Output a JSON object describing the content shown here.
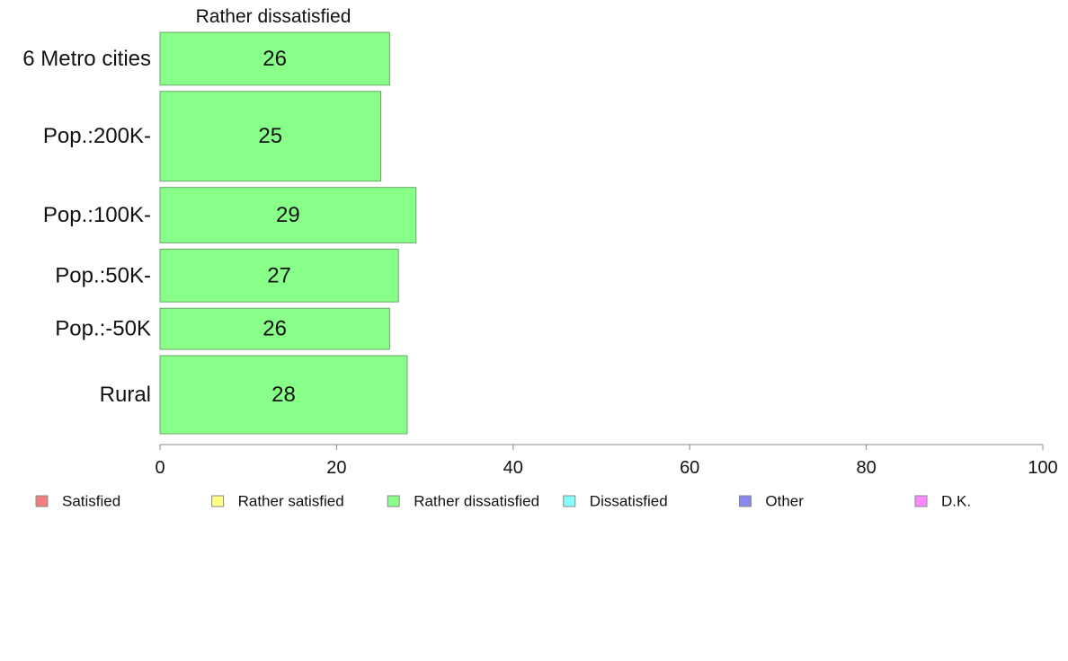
{
  "chart_data": {
    "type": "bar",
    "orientation": "horizontal",
    "title": "Rather dissatisfied",
    "categories": [
      "6 Metro cities",
      "Pop.:200K-",
      "Pop.:100K-",
      "Pop.:50K-",
      "Pop.:-50K",
      "Rural"
    ],
    "series": [
      {
        "name": "Rather dissatisfied",
        "color": "#88ff88",
        "values": [
          26,
          25,
          29,
          27,
          26,
          28
        ],
        "labels": [
          "26",
          "25",
          "29",
          "27",
          "26",
          "28"
        ]
      }
    ],
    "category_weights": [
      1.0,
      1.7,
      1.05,
      1.0,
      0.78,
      1.48
    ],
    "xlim": [
      0,
      100
    ],
    "x_ticks": [
      0,
      20,
      40,
      60,
      80,
      100
    ],
    "grid": false,
    "legend_placement": "bottom",
    "legend": [
      {
        "label": "Satisfied",
        "color": "#f08080"
      },
      {
        "label": "Rather satisfied",
        "color": "#ffff88"
      },
      {
        "label": "Rather dissatisfied",
        "color": "#88ff88"
      },
      {
        "label": "Dissatisfied",
        "color": "#88ffff"
      },
      {
        "label": "Other",
        "color": "#8888ee"
      },
      {
        "label": "D.K.",
        "color": "#ff88ff"
      }
    ]
  }
}
